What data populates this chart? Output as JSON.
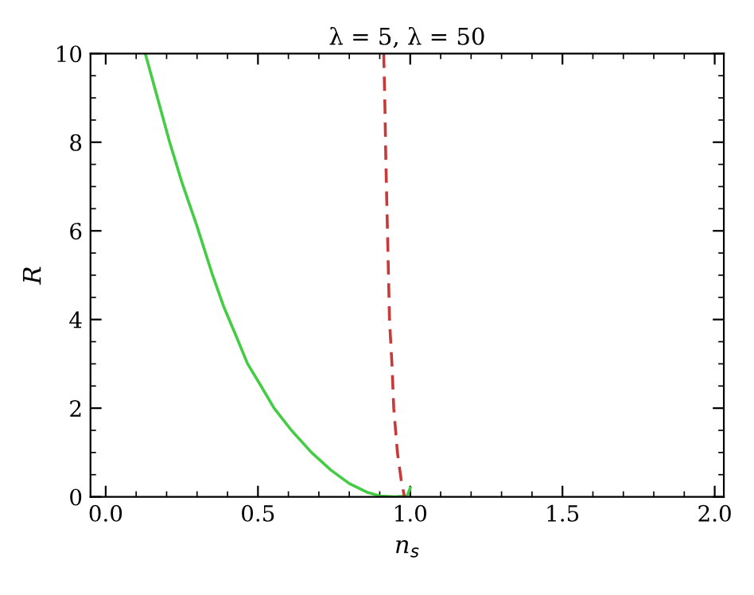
{
  "chart_data": {
    "type": "line",
    "title": "λ = 5, λ = 50",
    "xlabel": "n$_{s}$",
    "ylabel": "R",
    "xlim": [
      -0.05,
      2.03
    ],
    "xticks": [
      {
        "value": 0,
        "label": "0.0"
      },
      0.5,
      {
        "value": 1,
        "label": "1.0"
      },
      1.5,
      {
        "value": 2,
        "label": "2.0"
      }
    ],
    "ylim": [
      0,
      10
    ],
    "yticks": [
      0,
      2,
      4,
      6,
      8,
      10
    ],
    "grid": false,
    "legend": false,
    "marker": "none",
    "series": [
      {
        "color": "#44cc44",
        "line_style": "solid",
        "x": [
          0.13,
          0.17,
          0.21,
          0.25,
          0.3,
          0.351,
          0.387,
          0.43,
          0.466,
          0.51,
          0.553,
          0.61,
          0.676,
          0.74,
          0.8,
          0.86,
          0.9,
          0.95,
          0.99,
          1.0
        ],
        "values": [
          10,
          9,
          8,
          7.1,
          6.1,
          5,
          4.3,
          3.6,
          3,
          2.5,
          2,
          1.5,
          1,
          0.6,
          0.3,
          0.1,
          0.02,
          0,
          0.02,
          0.2
        ]
      },
      {
        "color": "#c83a3a",
        "line_style": "dashed",
        "x": [
          0.913,
          0.917,
          0.92,
          0.926,
          0.932,
          0.94,
          0.946,
          0.958,
          0.97,
          0.981
        ],
        "values": [
          10,
          8.8,
          7.6,
          5.8,
          4,
          3,
          2,
          1,
          0.4,
          0
        ]
      }
    ]
  }
}
